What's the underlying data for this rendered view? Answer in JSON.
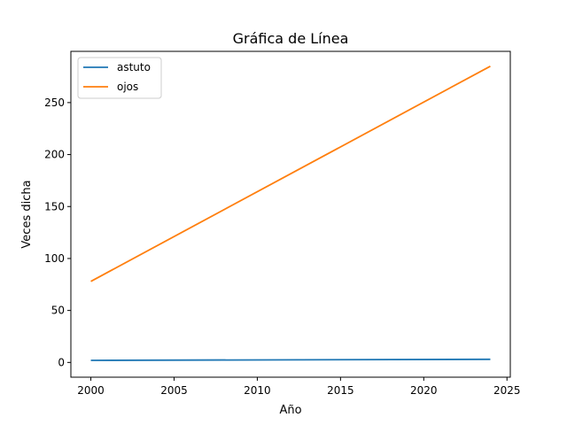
{
  "chart_data": {
    "type": "line",
    "title": "Gráfica de Línea",
    "xlabel": "Año",
    "ylabel": "Veces dicha",
    "xlim": [
      1998.8,
      2025.2
    ],
    "ylim": [
      -14.2,
      299.3
    ],
    "xticks": [
      2000,
      2005,
      2010,
      2015,
      2020,
      2025
    ],
    "yticks": [
      0,
      50,
      100,
      150,
      200,
      250
    ],
    "grid": false,
    "legend": "upper-left",
    "series": [
      {
        "name": "astuto",
        "color": "#1f77b4",
        "x": [
          2000,
          2024
        ],
        "y": [
          2,
          3
        ]
      },
      {
        "name": "ojos",
        "color": "#ff7f0e",
        "x": [
          2000,
          2024
        ],
        "y": [
          78,
          285
        ]
      }
    ]
  }
}
